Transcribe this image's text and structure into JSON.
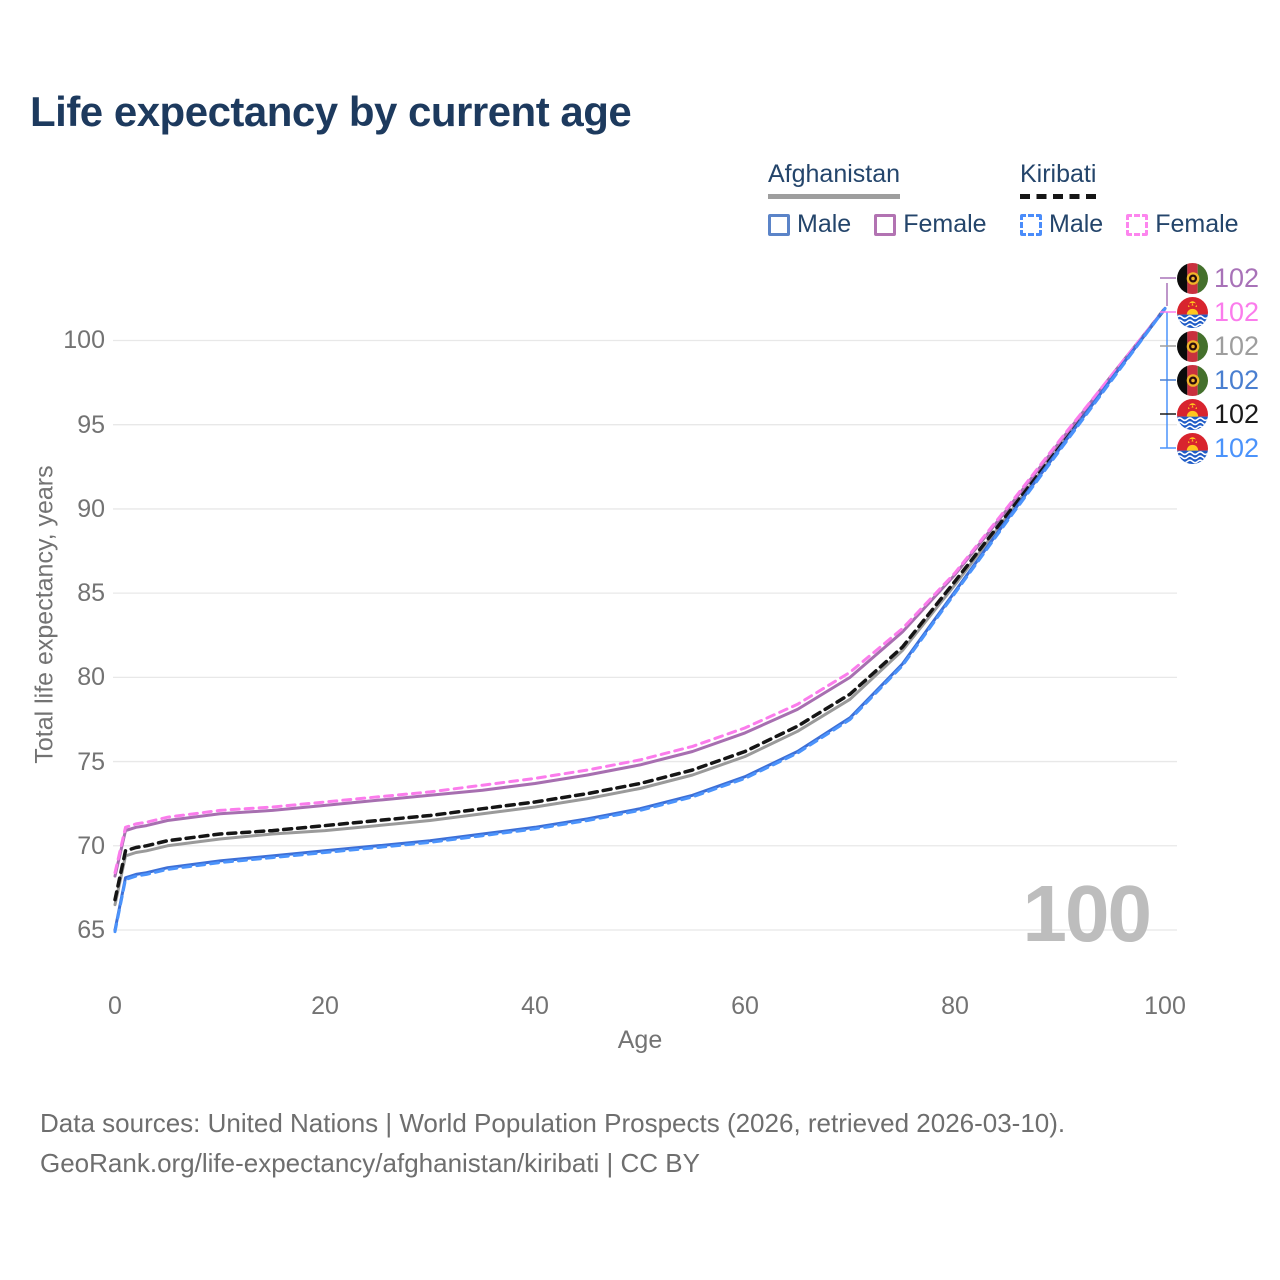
{
  "header": {
    "title": "Life expectancy by current age"
  },
  "legend": {
    "groups": [
      {
        "label": "Afghanistan",
        "underline": "solid",
        "underline_color": "#9e9e9e",
        "items": [
          {
            "label": "Male",
            "color": "#5b84c8",
            "dashed": false
          },
          {
            "label": "Female",
            "color": "#b273b2",
            "dashed": false
          }
        ]
      },
      {
        "label": "Kiribati",
        "underline": "dashed",
        "underline_color": "#161616",
        "items": [
          {
            "label": "Male",
            "color": "#4a8cfa",
            "dashed": true
          },
          {
            "label": "Female",
            "color": "#fd85ee",
            "dashed": true
          }
        ]
      }
    ]
  },
  "watermark": "100",
  "end_labels": [
    {
      "flag": "afghanistan",
      "value": "102",
      "color": "#a872b8",
      "series": "Afghanistan Female"
    },
    {
      "flag": "kiribati",
      "value": "102",
      "color": "#fb7cec",
      "series": "Kiribati Female"
    },
    {
      "flag": "afghanistan",
      "value": "102",
      "color": "#9e9e9e",
      "series": "Afghanistan Both sexes"
    },
    {
      "flag": "afghanistan",
      "value": "102",
      "color": "#4a7fd0",
      "series": "Afghanistan Male"
    },
    {
      "flag": "kiribati",
      "value": "102",
      "color": "#1a1a1a",
      "series": "Kiribati Both sexes"
    },
    {
      "flag": "kiribati",
      "value": "102",
      "color": "#4b93fb",
      "series": "Kiribati Male"
    }
  ],
  "chart_data": {
    "type": "line",
    "title": "Life expectancy by current age",
    "xlabel": "Age",
    "ylabel": "Total life expectancy, years",
    "xlim": [
      0,
      100
    ],
    "ylim": [
      63,
      103
    ],
    "x_ticks": [
      0,
      20,
      40,
      60,
      80,
      100
    ],
    "y_ticks": [
      65,
      70,
      75,
      80,
      85,
      90,
      95,
      100
    ],
    "grid": "horizontal",
    "legend_position": "top-right",
    "x": [
      0,
      1,
      2,
      3,
      5,
      10,
      15,
      20,
      25,
      30,
      35,
      40,
      45,
      50,
      55,
      60,
      65,
      70,
      75,
      80,
      85,
      90,
      95,
      100
    ],
    "series": [
      {
        "name": "Afghanistan Both sexes",
        "country": "Afghanistan",
        "sex": "Both",
        "style": "solid",
        "color": "#9a9a9a",
        "width": 3,
        "values": [
          66.5,
          69.4,
          69.6,
          69.7,
          70.0,
          70.4,
          70.7,
          70.9,
          71.2,
          71.5,
          71.9,
          72.3,
          72.8,
          73.4,
          74.2,
          75.3,
          76.8,
          78.7,
          81.6,
          85.5,
          89.6,
          93.7,
          97.8,
          101.9
        ]
      },
      {
        "name": "Kiribati Both sexes",
        "country": "Kiribati",
        "sex": "Both",
        "style": "dashed",
        "color": "#151515",
        "width": 3.5,
        "values": [
          66.8,
          69.7,
          69.9,
          70.0,
          70.3,
          70.7,
          70.9,
          71.2,
          71.5,
          71.8,
          72.2,
          72.6,
          73.1,
          73.7,
          74.5,
          75.6,
          77.1,
          79.0,
          81.8,
          85.7,
          89.7,
          93.8,
          97.9,
          101.9
        ]
      },
      {
        "name": "Afghanistan Female",
        "country": "Afghanistan",
        "sex": "Female",
        "style": "solid",
        "color": "#a76fb0",
        "width": 3,
        "values": [
          68.2,
          70.9,
          71.1,
          71.2,
          71.5,
          71.9,
          72.1,
          72.4,
          72.7,
          73.0,
          73.3,
          73.7,
          74.2,
          74.8,
          75.6,
          76.7,
          78.1,
          80.0,
          82.7,
          86.1,
          90.0,
          94.0,
          98.0,
          101.9
        ]
      },
      {
        "name": "Kiribati Female",
        "country": "Kiribati",
        "sex": "Female",
        "style": "dashed",
        "color": "#fb7cec",
        "width": 3,
        "values": [
          68.4,
          71.1,
          71.3,
          71.4,
          71.7,
          72.1,
          72.3,
          72.6,
          72.9,
          73.2,
          73.6,
          74.0,
          74.5,
          75.1,
          75.9,
          77.0,
          78.4,
          80.3,
          82.9,
          86.2,
          90.1,
          94.1,
          98.0,
          101.9
        ]
      },
      {
        "name": "Afghanistan Male",
        "country": "Afghanistan",
        "sex": "Male",
        "style": "solid",
        "color": "#3d6fd6",
        "width": 3,
        "values": [
          65.0,
          68.1,
          68.3,
          68.4,
          68.7,
          69.1,
          69.4,
          69.7,
          70.0,
          70.3,
          70.7,
          71.1,
          71.6,
          72.2,
          73.0,
          74.1,
          75.6,
          77.6,
          80.8,
          85.1,
          89.4,
          93.6,
          97.8,
          101.9
        ]
      },
      {
        "name": "Kiribati Male",
        "country": "Kiribati",
        "sex": "Male",
        "style": "dashed",
        "color": "#4b93fb",
        "width": 3,
        "values": [
          64.9,
          68.0,
          68.2,
          68.3,
          68.6,
          69.0,
          69.3,
          69.6,
          69.9,
          70.2,
          70.6,
          71.0,
          71.5,
          72.1,
          72.9,
          74.0,
          75.5,
          77.5,
          80.7,
          85.0,
          89.3,
          93.5,
          97.7,
          101.9
        ]
      }
    ]
  },
  "footer": {
    "line1": "Data sources: United Nations | World Population Prospects (2026, retrieved 2026-03-10).",
    "line2": "GeoRank.org/life-expectancy/afghanistan/kiribati | CC BY"
  }
}
